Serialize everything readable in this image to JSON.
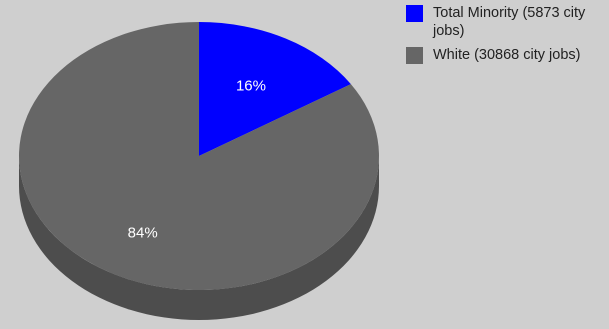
{
  "chart_data": {
    "type": "pie",
    "style": "3d",
    "slices": [
      {
        "name": "Total Minority (5873 city jobs)",
        "value": 5873,
        "label": "16%",
        "color": "#0000ff"
      },
      {
        "name": "White (30868 city jobs)",
        "value": 30868,
        "label": "84%",
        "color": "#666666"
      }
    ],
    "legend": "top-right",
    "background": "#cfcfcf",
    "side_color": "#4d4d4d"
  }
}
